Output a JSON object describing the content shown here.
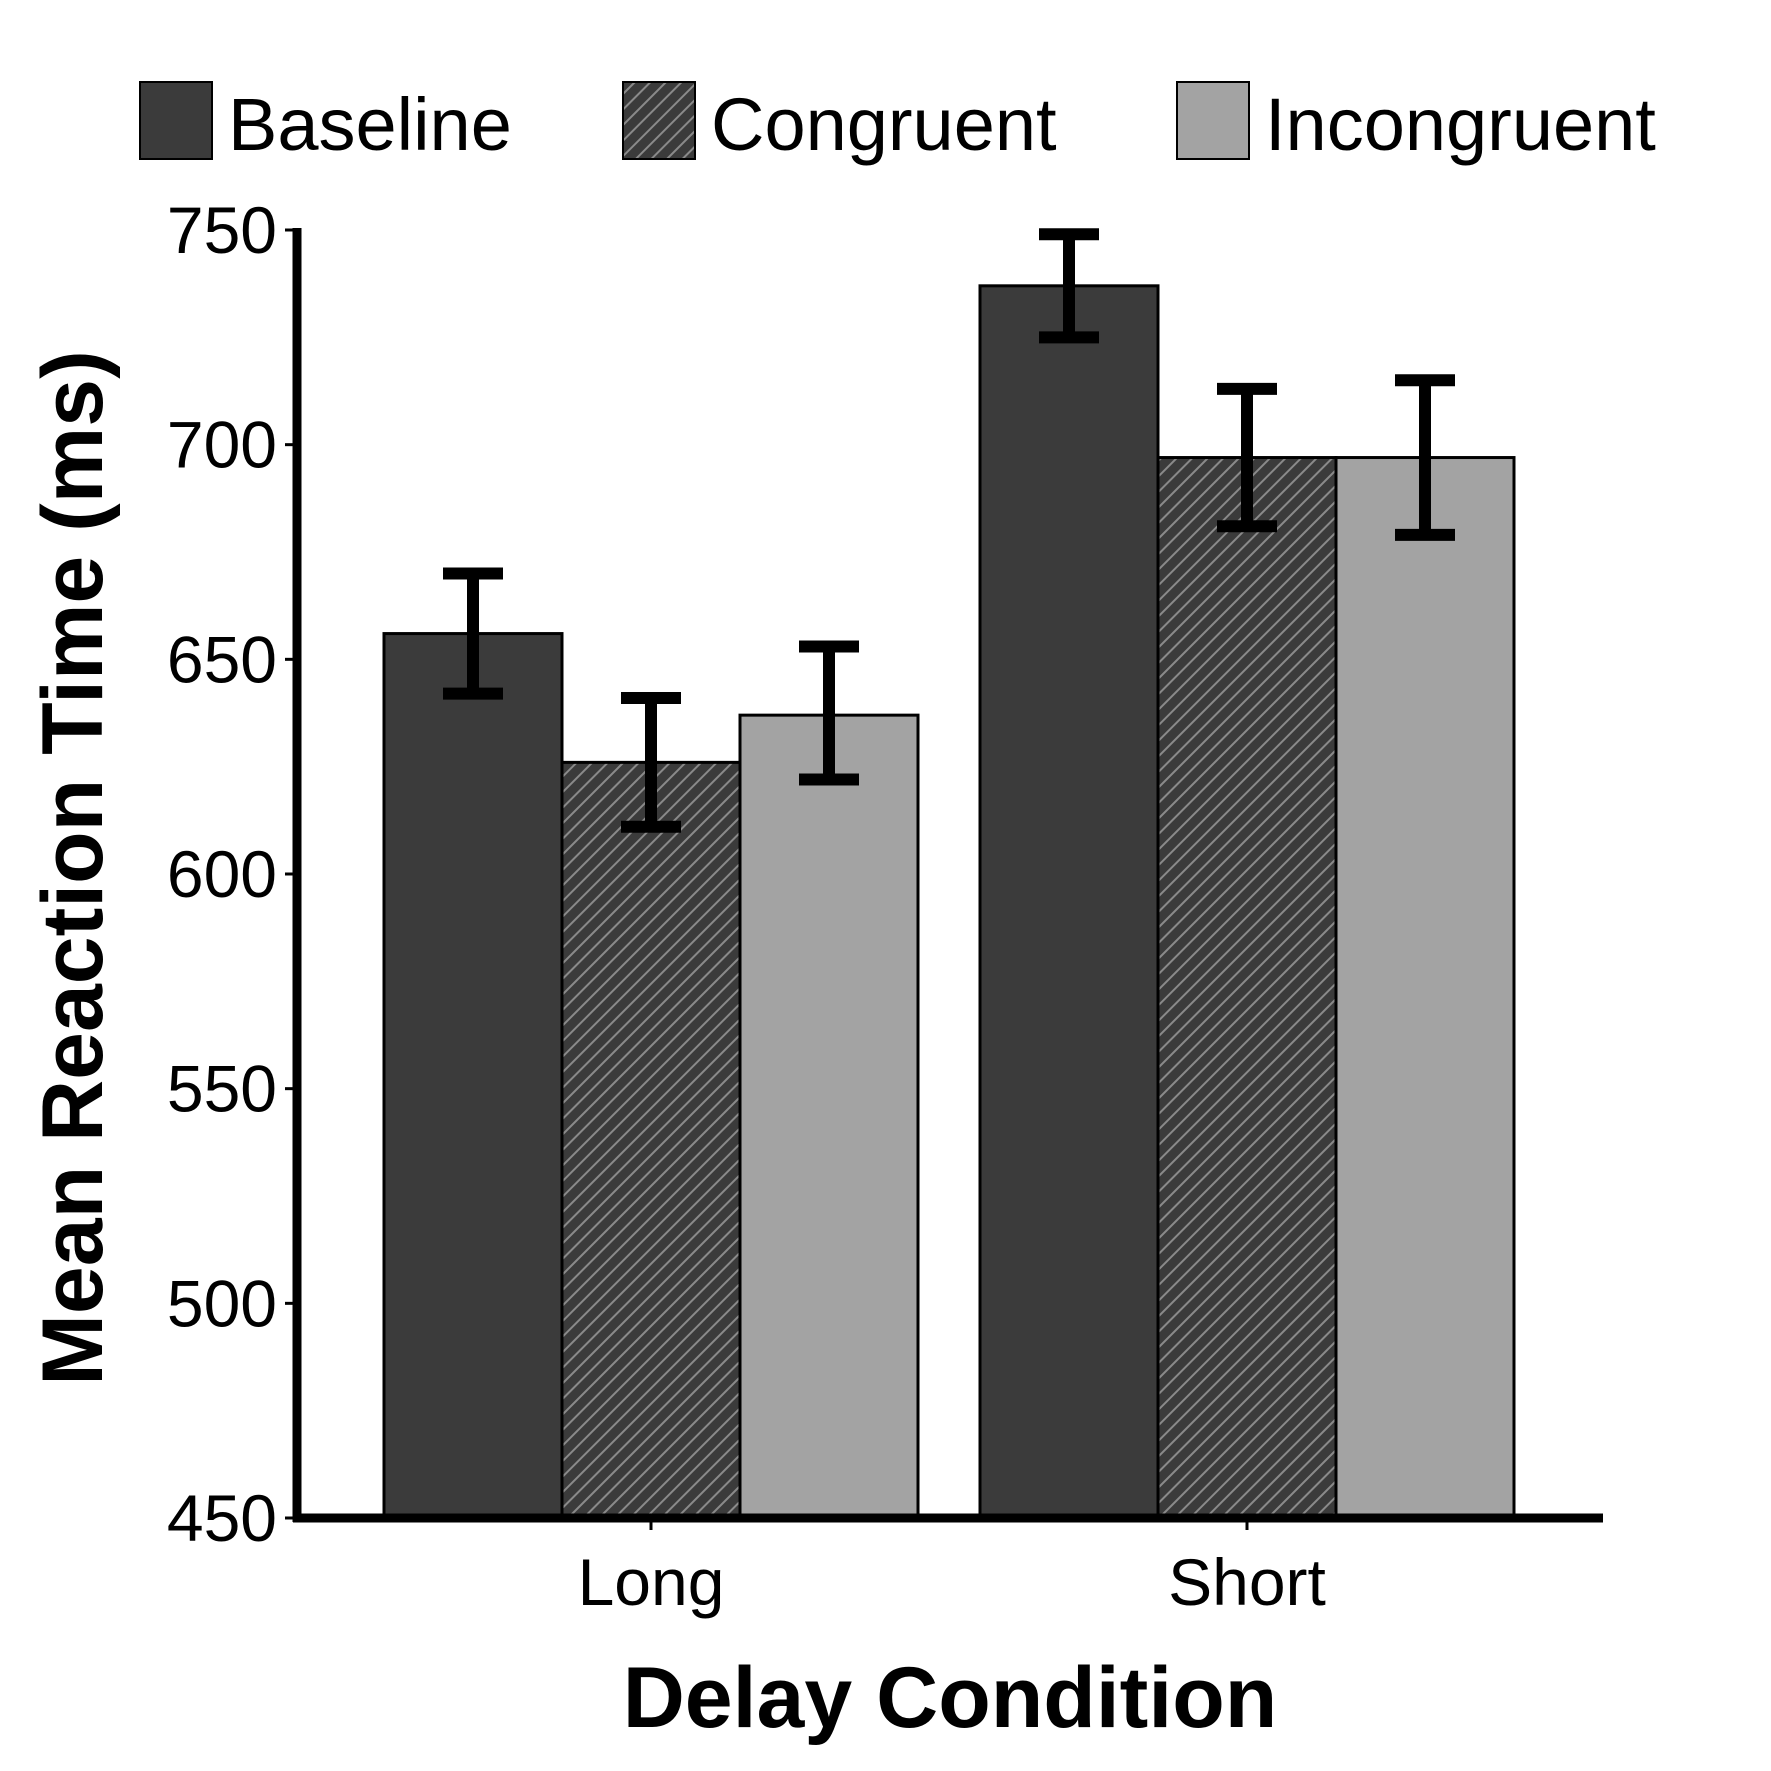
{
  "chart_data": {
    "type": "bar",
    "title": "",
    "xlabel": "Delay Condition",
    "ylabel": "Mean Reaction Time (ms)",
    "categories": [
      "Long",
      "Short"
    ],
    "ylim": [
      450,
      750
    ],
    "yticks": [
      "450",
      "500",
      "550",
      "600",
      "650",
      "700",
      "750"
    ],
    "grid": false,
    "legend_position": "top",
    "series": [
      {
        "name": "Baseline",
        "values": [
          656,
          737
        ],
        "err_low": [
          642,
          725
        ],
        "err_high": [
          670,
          749
        ],
        "fill": "#3b3b3b",
        "pattern": "solid"
      },
      {
        "name": "Congruent",
        "values": [
          626,
          697
        ],
        "err_low": [
          611,
          681
        ],
        "err_high": [
          641,
          713
        ],
        "fill": "#3b3b3b",
        "pattern": "hatch"
      },
      {
        "name": "Incongruent",
        "values": [
          637,
          697
        ],
        "err_low": [
          622,
          679
        ],
        "err_high": [
          653,
          715
        ],
        "fill": "#a3a3a3",
        "pattern": "solid"
      }
    ]
  }
}
